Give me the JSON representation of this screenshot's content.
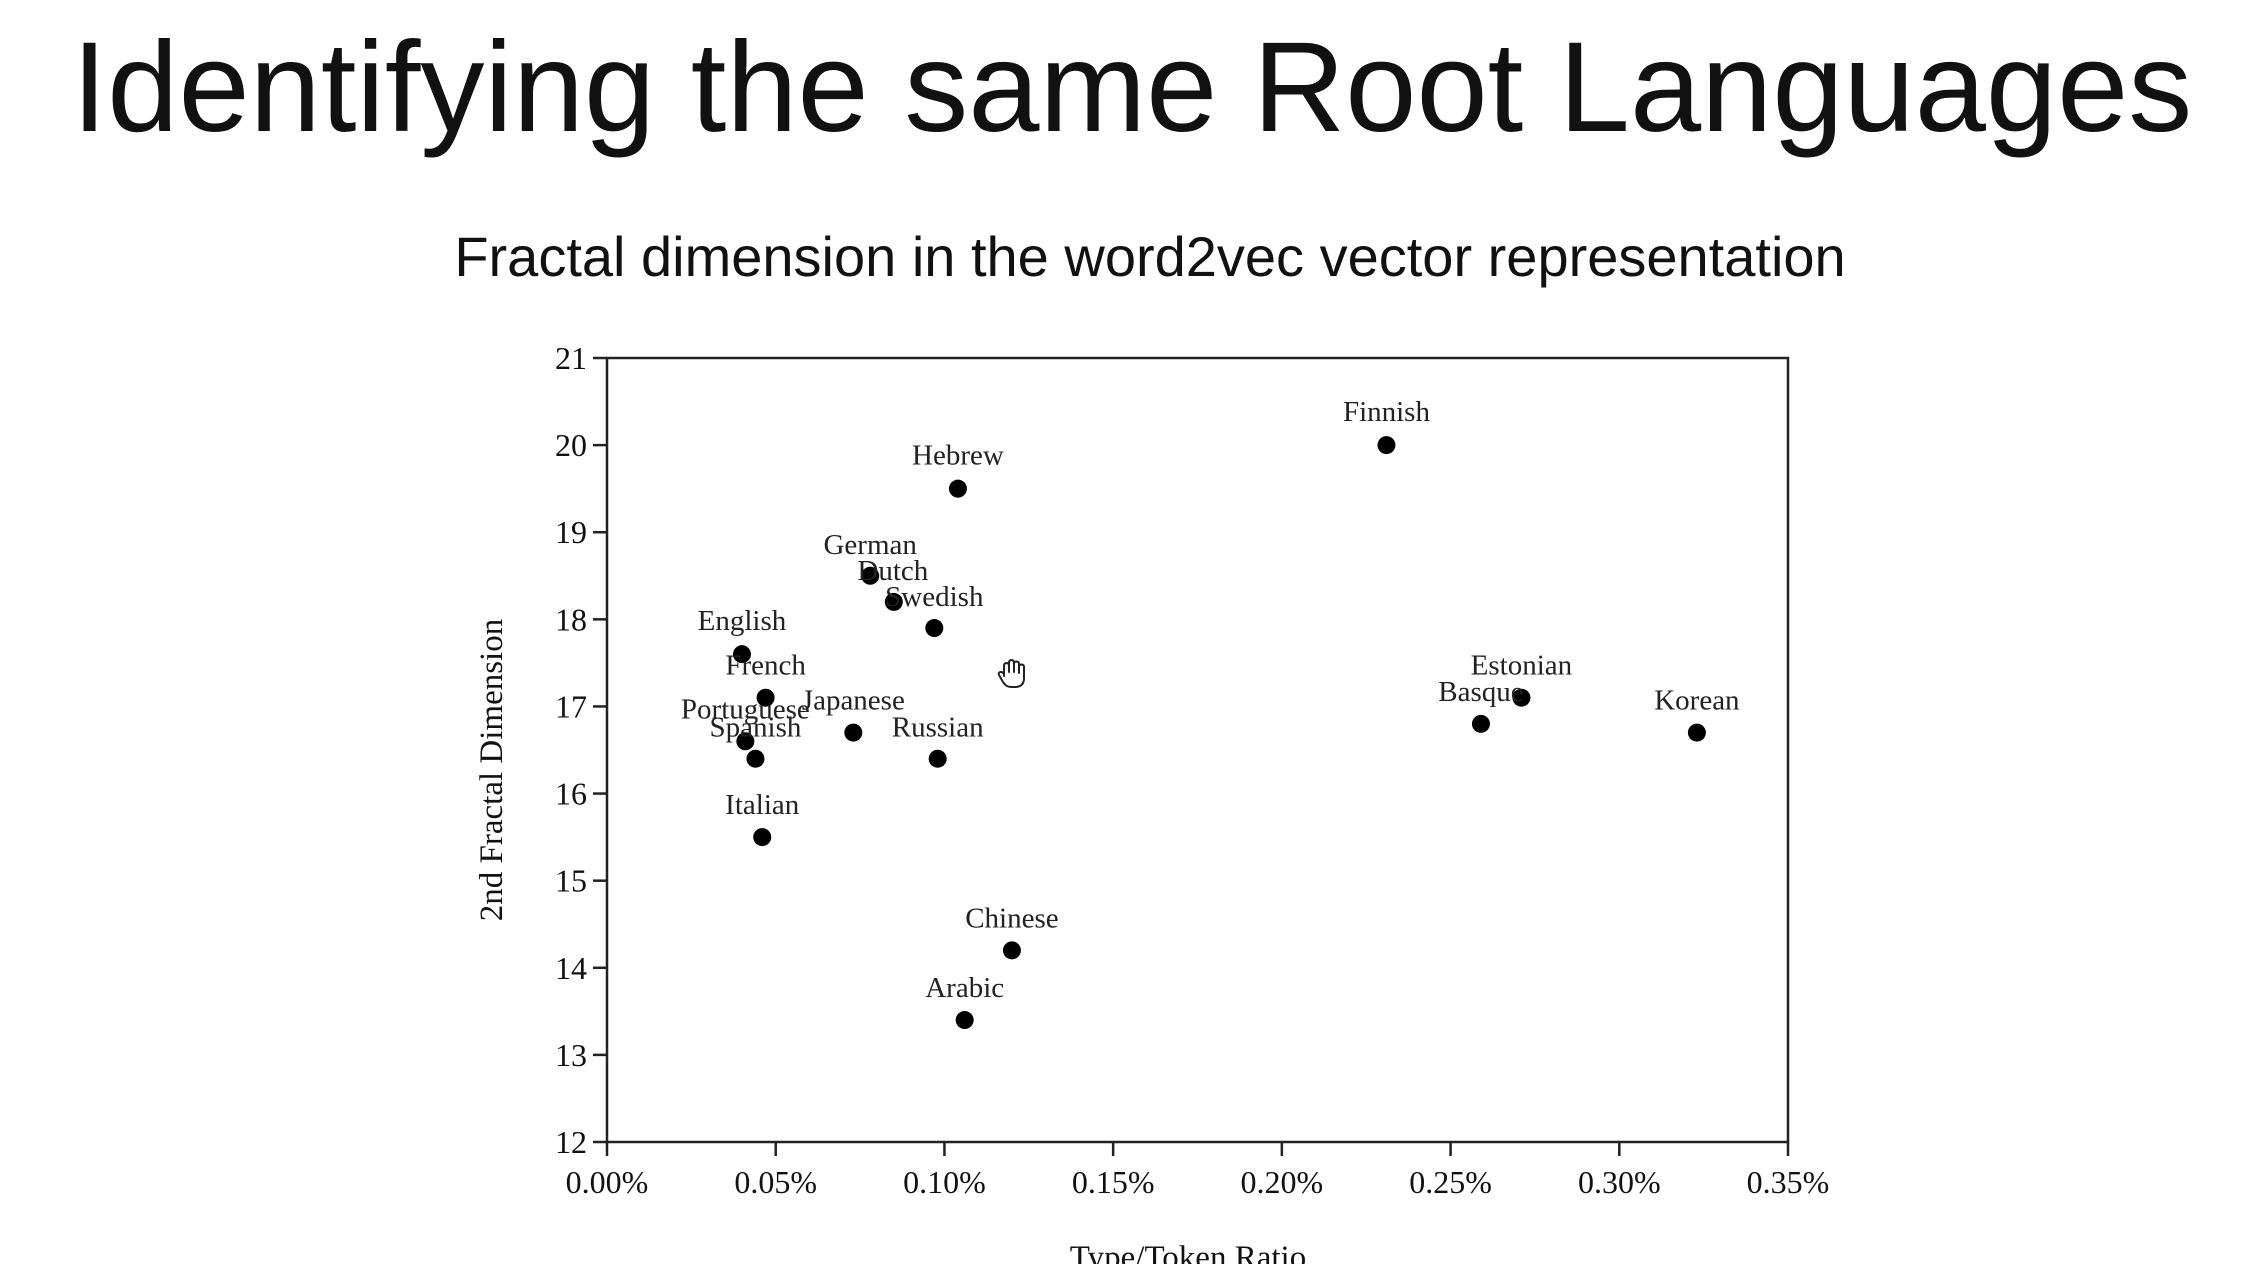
{
  "slide": {
    "title": "Identifying the same Root Languages"
  },
  "chart_data": {
    "type": "scatter",
    "title": "Fractal dimension in the word2vec vector representation",
    "xlabel": "Type/Token Ratio",
    "ylabel": "2nd Fractal Dimension",
    "xlim": [
      0.0,
      0.35
    ],
    "ylim": [
      12,
      21
    ],
    "x_ticks": [
      "0.00%",
      "0.05%",
      "0.10%",
      "0.15%",
      "0.20%",
      "0.25%",
      "0.30%",
      "0.35%"
    ],
    "y_ticks": [
      "12",
      "13",
      "14",
      "15",
      "16",
      "17",
      "18",
      "19",
      "20",
      "21"
    ],
    "x_unit": "%",
    "grid": false,
    "points": [
      {
        "label": "Finnish",
        "x": 0.231,
        "y": 20.0
      },
      {
        "label": "Hebrew",
        "x": 0.104,
        "y": 19.5
      },
      {
        "label": "German",
        "x": 0.078,
        "y": 18.5
      },
      {
        "label": "Dutch",
        "x": 0.085,
        "y": 18.2
      },
      {
        "label": "Swedish",
        "x": 0.097,
        "y": 17.9
      },
      {
        "label": "English",
        "x": 0.04,
        "y": 17.6
      },
      {
        "label": "French",
        "x": 0.047,
        "y": 17.1
      },
      {
        "label": "Portuguese",
        "x": 0.041,
        "y": 16.6
      },
      {
        "label": "Spanish",
        "x": 0.044,
        "y": 16.4
      },
      {
        "label": "Japanese",
        "x": 0.073,
        "y": 16.7
      },
      {
        "label": "Russian",
        "x": 0.098,
        "y": 16.4
      },
      {
        "label": "Italian",
        "x": 0.046,
        "y": 15.5
      },
      {
        "label": "Chinese",
        "x": 0.12,
        "y": 14.2
      },
      {
        "label": "Arabic",
        "x": 0.106,
        "y": 13.4
      },
      {
        "label": "Estonian",
        "x": 0.271,
        "y": 17.1
      },
      {
        "label": "Basque",
        "x": 0.259,
        "y": 16.8
      },
      {
        "label": "Korean",
        "x": 0.323,
        "y": 16.7
      }
    ],
    "marker_color": "#000000"
  }
}
